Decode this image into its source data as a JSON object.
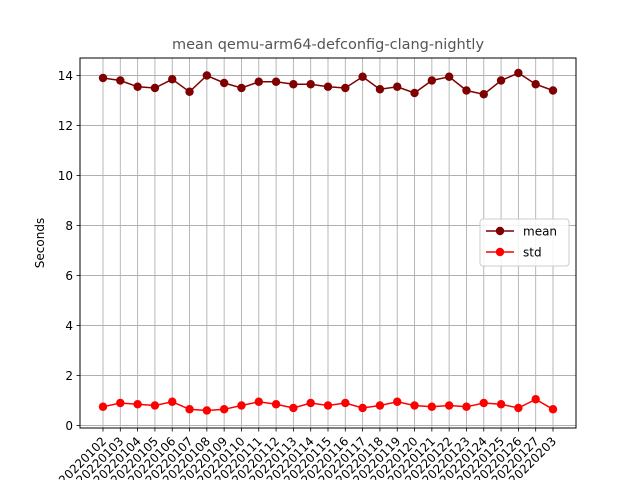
{
  "chart_data": {
    "type": "line",
    "title": "mean qemu-arm64-defconfig-clang-nightly",
    "xlabel": "",
    "ylabel": "Seconds",
    "ylim": [
      -0.1,
      14.7
    ],
    "yticks": [
      0,
      2,
      4,
      6,
      8,
      10,
      12,
      14
    ],
    "grid": true,
    "legend_position": "center-right",
    "categories": [
      "20220102",
      "20220103",
      "20220104",
      "20220105",
      "20220106",
      "20220107",
      "20220108",
      "20220109",
      "20220110",
      "20220111",
      "20220112",
      "20220113",
      "20220114",
      "20220115",
      "20220116",
      "20220117",
      "20220118",
      "20220119",
      "20220120",
      "20220121",
      "20220122",
      "20220123",
      "20220124",
      "20220125",
      "20220126",
      "20220127",
      "20220203"
    ],
    "series": [
      {
        "name": "mean",
        "color": "#7f0000",
        "values": [
          13.9,
          13.8,
          13.55,
          13.5,
          13.85,
          13.35,
          14.0,
          13.7,
          13.5,
          13.75,
          13.75,
          13.65,
          13.65,
          13.55,
          13.5,
          13.95,
          13.45,
          13.55,
          13.3,
          13.8,
          13.95,
          13.4,
          13.25,
          13.8,
          14.1,
          13.65,
          13.4
        ]
      },
      {
        "name": "std",
        "color": "#ff0000",
        "values": [
          0.75,
          0.9,
          0.85,
          0.8,
          0.95,
          0.65,
          0.6,
          0.65,
          0.8,
          0.95,
          0.85,
          0.7,
          0.9,
          0.8,
          0.9,
          0.7,
          0.8,
          0.95,
          0.8,
          0.75,
          0.8,
          0.75,
          0.9,
          0.85,
          0.7,
          1.05,
          0.65
        ]
      }
    ]
  }
}
